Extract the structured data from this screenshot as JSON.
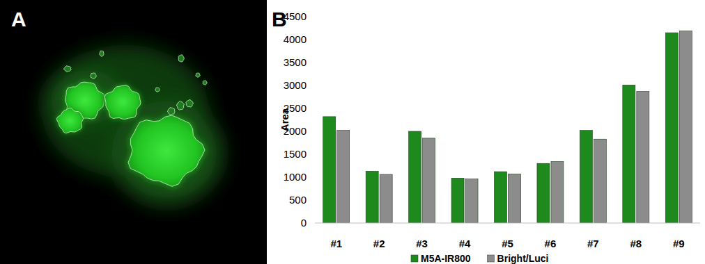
{
  "panel_labels": [
    "A",
    "B"
  ],
  "chart_data": {
    "type": "bar",
    "y_label": "Area",
    "categories": [
      "#1",
      "#2",
      "#3",
      "#4",
      "#5",
      "#6",
      "#7",
      "#8",
      "#9"
    ],
    "series": [
      {
        "name": "M5A-IR800",
        "color": "#1e8a1e",
        "values": [
          2320,
          1130,
          2000,
          980,
          1120,
          1300,
          2020,
          3010,
          4150
        ]
      },
      {
        "name": "Bright/Luci",
        "color": "#8c8c8c",
        "values": [
          2020,
          1060,
          1850,
          960,
          1070,
          1340,
          1830,
          2870,
          4190
        ]
      }
    ],
    "ylim": [
      0,
      4500
    ],
    "yticks": [
      0,
      500,
      1000,
      1500,
      2000,
      2500,
      3000,
      3500,
      4000,
      4500
    ],
    "grid": false,
    "legend": "bottom"
  }
}
